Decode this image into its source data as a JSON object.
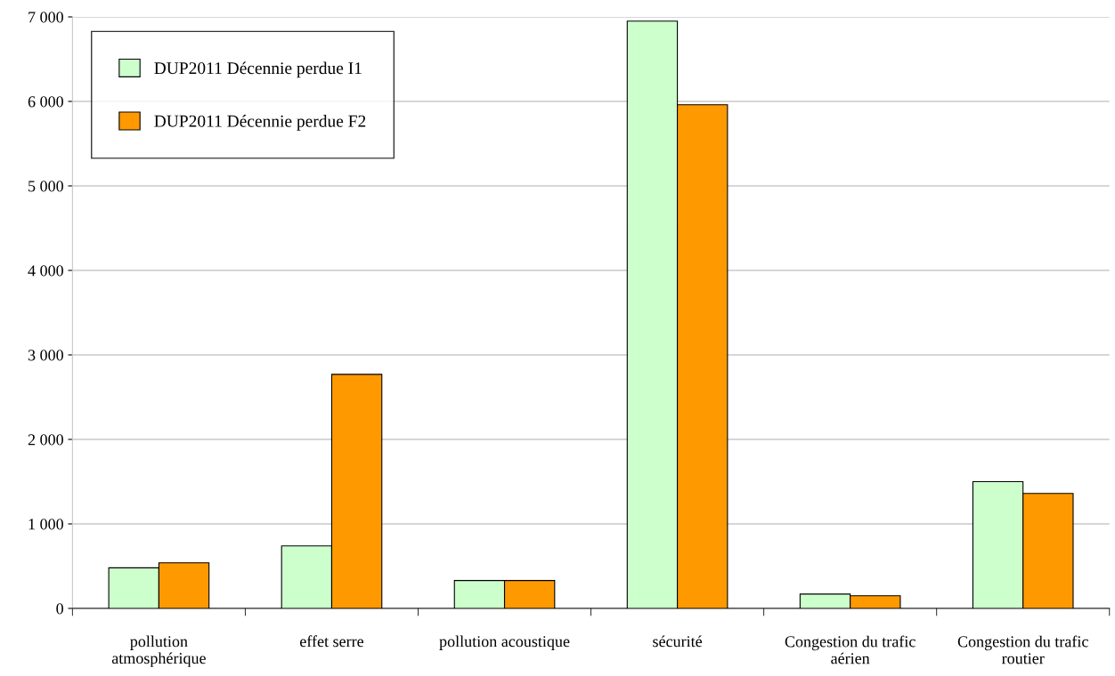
{
  "chart_data": {
    "type": "bar",
    "categories": [
      "pollution\natmosphérique",
      "effet serre",
      "pollution acoustique",
      "sécurité",
      "Congestion du trafic\naérien",
      "Congestion du trafic\nroutier"
    ],
    "series": [
      {
        "name": "DUP2011 Décennie perdue I1",
        "color": "#ccffcc",
        "values": [
          480,
          740,
          330,
          6950,
          170,
          1500
        ]
      },
      {
        "name": "DUP2011 Décennie perdue F2",
        "color": "#ff9900",
        "values": [
          540,
          2770,
          330,
          5960,
          150,
          1360
        ]
      }
    ],
    "ylim": [
      0,
      7000
    ],
    "yticks": [
      0,
      {
        "value": 1000,
        "label": "1 000"
      },
      {
        "value": 2000,
        "label": "2 000"
      },
      {
        "value": 3000,
        "label": "3 000"
      },
      {
        "value": 4000,
        "label": "4 000"
      },
      {
        "value": 5000,
        "label": "5 000"
      },
      {
        "value": 6000,
        "label": "6 000"
      },
      {
        "value": 7000,
        "label": "7 000"
      }
    ],
    "grid": "y",
    "legend": "top left"
  }
}
